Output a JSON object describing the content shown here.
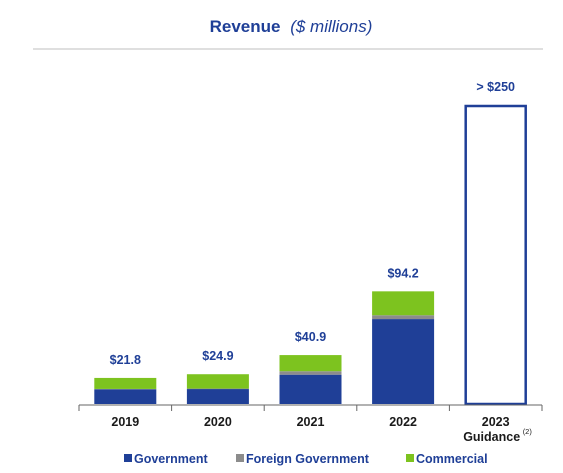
{
  "chart_data": {
    "type": "bar",
    "stacked": true,
    "title": "Revenue",
    "subtitle": "($ millions)",
    "categories": [
      "2019",
      "2020",
      "2021",
      "2022",
      "2023"
    ],
    "category_sublabels": [
      "",
      "",
      "",
      "",
      "Guidance"
    ],
    "category_footnotes": [
      "",
      "",
      "",
      "",
      "(2)"
    ],
    "series": [
      {
        "name": "Government",
        "color": "#1f3f97",
        "values": [
          12.3,
          12.5,
          24.5,
          71.0,
          null
        ]
      },
      {
        "name": "Foreign Government",
        "color": "#8c8c8c",
        "values": [
          0.3,
          0.4,
          2.9,
          3.2,
          null
        ]
      },
      {
        "name": "Commercial",
        "color": "#7dc31f",
        "values": [
          9.2,
          12.0,
          13.5,
          20.0,
          null
        ]
      }
    ],
    "totals_labels": [
      "$21.8",
      "$24.9",
      "$40.9",
      "$94.2",
      "> $250"
    ],
    "guidance": {
      "category_index": 4,
      "value": 250,
      "style": "outline",
      "color": "#1f3f97"
    },
    "ylim": [
      0,
      265
    ],
    "grid": false,
    "legend_position": "bottom",
    "colors": {
      "title": "#1f3f97",
      "text": "#1a1a1a",
      "axis": "#666666",
      "divider": "#bfbfbf"
    }
  }
}
